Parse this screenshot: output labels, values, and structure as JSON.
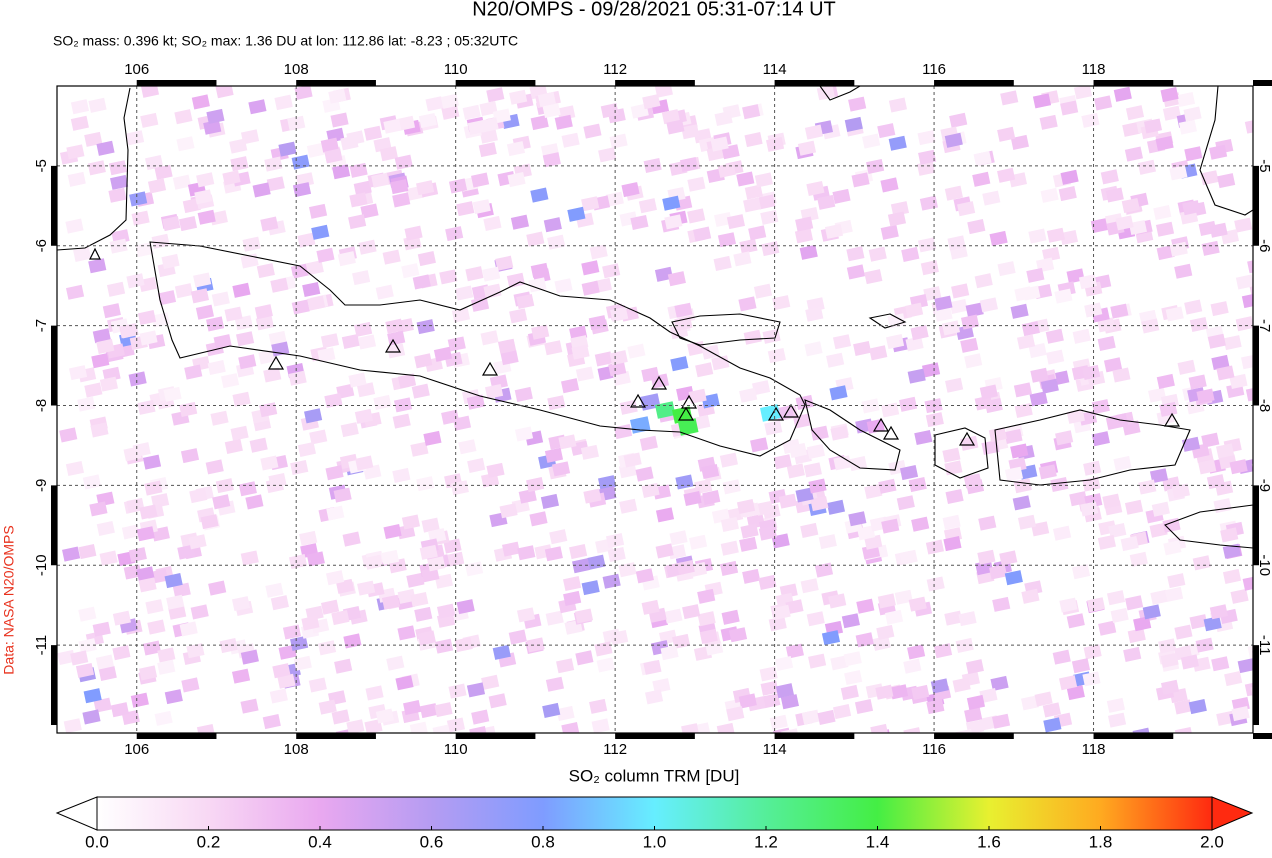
{
  "title": "N20/OMPS - 09/28/2021 05:31-07:14 UT",
  "subtitle": "SO₂ mass: 0.396 kt; SO₂ max: 1.36 DU at lon: 112.86 lat: -8.23 ; 05:32UTC",
  "credit": "Data: NASA N20/OMPS",
  "map": {
    "xlim": [
      105,
      120
    ],
    "ylim": [
      -12.1,
      -4
    ],
    "xticks": [
      106,
      108,
      110,
      112,
      114,
      116,
      118
    ],
    "yticks": [
      -5,
      -6,
      -7,
      -8,
      -9,
      -10,
      -11
    ]
  },
  "colorbar": {
    "label": "SO₂ column TRM [DU]",
    "ticks": [
      {
        "value": 0,
        "label": "0.0"
      },
      {
        "value": 0.2,
        "label": "0.2"
      },
      {
        "value": 0.4,
        "label": "0.4"
      },
      {
        "value": 0.6,
        "label": "0.6"
      },
      {
        "value": 0.8,
        "label": "0.8"
      },
      {
        "value": 1,
        "label": "1.0"
      },
      {
        "value": 1.2,
        "label": "1.2"
      },
      {
        "value": 1.4,
        "label": "1.4"
      },
      {
        "value": 1.6,
        "label": "1.6"
      },
      {
        "value": 1.8,
        "label": "1.8"
      },
      {
        "value": 2,
        "label": "2.0"
      }
    ],
    "colors": [
      "#ffffff",
      "#f8d8f4",
      "#e9a8f0",
      "#b59cf2",
      "#7f9cff",
      "#66eeff",
      "#55ee99",
      "#44ee44",
      "#e8f030",
      "#ffaa20",
      "#ff2a10"
    ]
  }
}
